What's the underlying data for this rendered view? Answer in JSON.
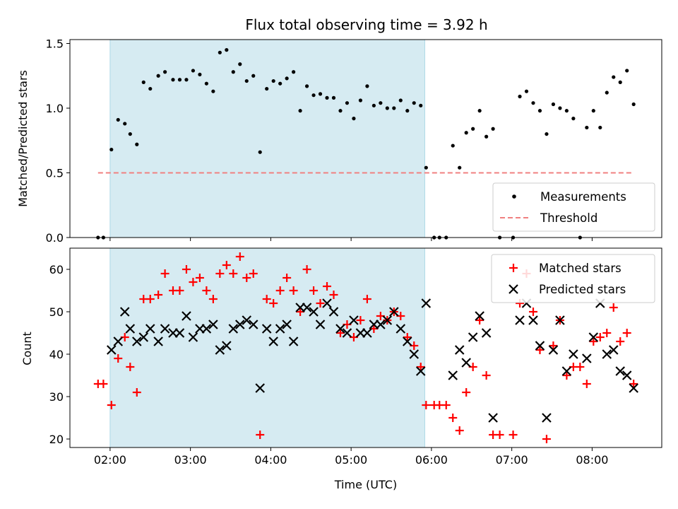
{
  "chart_data": {
    "title": "Flux total observing time = 3.92 h",
    "xlabel": "Time (UTC)",
    "x_ticks": [
      "02:00",
      "03:00",
      "04:00",
      "05:00",
      "06:00",
      "07:00",
      "08:00"
    ],
    "x_range": [
      "01:30",
      "08:52"
    ],
    "shaded_interval": [
      "02:00",
      "05:55"
    ],
    "shade_color": "#add8e6",
    "panels": [
      {
        "type": "scatter",
        "ylabel": "Matched/Predicted stars",
        "ylim": [
          0,
          1.53
        ],
        "y_ticks": [
          "0.0",
          "0.5",
          "1.0",
          "1.5"
        ],
        "legend_position": "lower-right",
        "series": [
          {
            "name": "Measurements",
            "marker": "dot",
            "color": "#000000",
            "points": [
              [
                "01:51",
                0.0
              ],
              [
                "01:55",
                0.0
              ],
              [
                "02:01",
                0.68
              ],
              [
                "02:06",
                0.91
              ],
              [
                "02:11",
                0.88
              ],
              [
                "02:15",
                0.8
              ],
              [
                "02:20",
                0.72
              ],
              [
                "02:25",
                1.2
              ],
              [
                "02:30",
                1.15
              ],
              [
                "02:36",
                1.25
              ],
              [
                "02:41",
                1.28
              ],
              [
                "02:47",
                1.22
              ],
              [
                "02:52",
                1.22
              ],
              [
                "02:57",
                1.22
              ],
              [
                "03:02",
                1.29
              ],
              [
                "03:07",
                1.26
              ],
              [
                "03:12",
                1.19
              ],
              [
                "03:17",
                1.13
              ],
              [
                "03:22",
                1.43
              ],
              [
                "03:27",
                1.45
              ],
              [
                "03:32",
                1.28
              ],
              [
                "03:37",
                1.34
              ],
              [
                "03:42",
                1.21
              ],
              [
                "03:47",
                1.25
              ],
              [
                "03:52",
                0.66
              ],
              [
                "03:57",
                1.15
              ],
              [
                "04:02",
                1.21
              ],
              [
                "04:07",
                1.19
              ],
              [
                "04:12",
                1.23
              ],
              [
                "04:17",
                1.28
              ],
              [
                "04:22",
                0.98
              ],
              [
                "04:27",
                1.17
              ],
              [
                "04:32",
                1.1
              ],
              [
                "04:37",
                1.11
              ],
              [
                "04:42",
                1.08
              ],
              [
                "04:47",
                1.08
              ],
              [
                "04:52",
                0.98
              ],
              [
                "04:57",
                1.04
              ],
              [
                "05:02",
                0.92
              ],
              [
                "05:07",
                1.06
              ],
              [
                "05:12",
                1.17
              ],
              [
                "05:17",
                1.02
              ],
              [
                "05:22",
                1.04
              ],
              [
                "05:27",
                1.0
              ],
              [
                "05:32",
                1.0
              ],
              [
                "05:37",
                1.06
              ],
              [
                "05:42",
                0.98
              ],
              [
                "05:47",
                1.04
              ],
              [
                "05:52",
                1.02
              ],
              [
                "05:56",
                0.54
              ],
              [
                "06:02",
                0.0
              ],
              [
                "06:06",
                0.0
              ],
              [
                "06:11",
                0.0
              ],
              [
                "06:16",
                0.71
              ],
              [
                "06:21",
                0.54
              ],
              [
                "06:26",
                0.81
              ],
              [
                "06:31",
                0.84
              ],
              [
                "06:36",
                0.98
              ],
              [
                "06:41",
                0.78
              ],
              [
                "06:46",
                0.84
              ],
              [
                "06:51",
                0.0
              ],
              [
                "07:01",
                0.0
              ],
              [
                "07:06",
                1.09
              ],
              [
                "07:11",
                1.13
              ],
              [
                "07:16",
                1.04
              ],
              [
                "07:21",
                0.98
              ],
              [
                "07:26",
                0.8
              ],
              [
                "07:31",
                1.03
              ],
              [
                "07:36",
                1.0
              ],
              [
                "07:41",
                0.98
              ],
              [
                "07:46",
                0.92
              ],
              [
                "07:51",
                0.0
              ],
              [
                "07:56",
                0.85
              ],
              [
                "08:01",
                0.98
              ],
              [
                "08:06",
                0.85
              ],
              [
                "08:11",
                1.12
              ],
              [
                "08:16",
                1.24
              ],
              [
                "08:21",
                1.2
              ],
              [
                "08:26",
                1.29
              ],
              [
                "08:31",
                1.03
              ]
            ]
          },
          {
            "name": "Threshold",
            "type": "line",
            "style": "dashed",
            "color": "#f08080",
            "value": 0.5,
            "x_start": "01:51",
            "x_end": "08:31"
          }
        ]
      },
      {
        "type": "scatter",
        "ylabel": "Count",
        "ylim": [
          18,
          65
        ],
        "y_ticks": [
          "20",
          "30",
          "40",
          "50",
          "60"
        ],
        "legend_position": "top-right",
        "series": [
          {
            "name": "Matched stars",
            "marker": "plus",
            "color": "#ff0000",
            "points": [
              [
                "01:51",
                33
              ],
              [
                "01:55",
                33
              ],
              [
                "02:01",
                28
              ],
              [
                "02:06",
                39
              ],
              [
                "02:11",
                44
              ],
              [
                "02:15",
                37
              ],
              [
                "02:20",
                31
              ],
              [
                "02:25",
                53
              ],
              [
                "02:30",
                53
              ],
              [
                "02:36",
                54
              ],
              [
                "02:41",
                59
              ],
              [
                "02:47",
                55
              ],
              [
                "02:52",
                55
              ],
              [
                "02:57",
                60
              ],
              [
                "03:02",
                57
              ],
              [
                "03:07",
                58
              ],
              [
                "03:12",
                55
              ],
              [
                "03:17",
                53
              ],
              [
                "03:22",
                59
              ],
              [
                "03:27",
                61
              ],
              [
                "03:32",
                59
              ],
              [
                "03:37",
                63
              ],
              [
                "03:42",
                58
              ],
              [
                "03:47",
                59
              ],
              [
                "03:52",
                21
              ],
              [
                "03:57",
                53
              ],
              [
                "04:02",
                52
              ],
              [
                "04:07",
                55
              ],
              [
                "04:12",
                58
              ],
              [
                "04:17",
                55
              ],
              [
                "04:22",
                50
              ],
              [
                "04:27",
                60
              ],
              [
                "04:32",
                55
              ],
              [
                "04:37",
                52
              ],
              [
                "04:42",
                56
              ],
              [
                "04:47",
                54
              ],
              [
                "04:52",
                45
              ],
              [
                "04:57",
                47
              ],
              [
                "05:02",
                44
              ],
              [
                "05:07",
                48
              ],
              [
                "05:12",
                53
              ],
              [
                "05:17",
                46
              ],
              [
                "05:22",
                49
              ],
              [
                "05:27",
                48
              ],
              [
                "05:32",
                50
              ],
              [
                "05:37",
                49
              ],
              [
                "05:42",
                44
              ],
              [
                "05:47",
                42
              ],
              [
                "05:52",
                37
              ],
              [
                "05:56",
                28
              ],
              [
                "06:02",
                28
              ],
              [
                "06:06",
                28
              ],
              [
                "06:11",
                28
              ],
              [
                "06:16",
                25
              ],
              [
                "06:21",
                22
              ],
              [
                "06:26",
                31
              ],
              [
                "06:31",
                37
              ],
              [
                "06:36",
                48
              ],
              [
                "06:41",
                35
              ],
              [
                "06:46",
                21
              ],
              [
                "06:51",
                21
              ],
              [
                "07:01",
                21
              ],
              [
                "07:06",
                52
              ],
              [
                "07:11",
                59
              ],
              [
                "07:16",
                50
              ],
              [
                "07:21",
                41
              ],
              [
                "07:26",
                20
              ],
              [
                "07:31",
                42
              ],
              [
                "07:36",
                48
              ],
              [
                "07:41",
                35
              ],
              [
                "07:46",
                37
              ],
              [
                "07:51",
                37
              ],
              [
                "07:56",
                33
              ],
              [
                "08:01",
                43
              ],
              [
                "08:06",
                44
              ],
              [
                "08:11",
                45
              ],
              [
                "08:16",
                51
              ],
              [
                "08:21",
                43
              ],
              [
                "08:26",
                45
              ],
              [
                "08:31",
                33
              ]
            ]
          },
          {
            "name": "Predicted stars",
            "marker": "x",
            "color": "#000000",
            "points": [
              [
                "02:01",
                41
              ],
              [
                "02:06",
                43
              ],
              [
                "02:11",
                50
              ],
              [
                "02:15",
                46
              ],
              [
                "02:20",
                43
              ],
              [
                "02:25",
                44
              ],
              [
                "02:30",
                46
              ],
              [
                "02:36",
                43
              ],
              [
                "02:41",
                46
              ],
              [
                "02:47",
                45
              ],
              [
                "02:52",
                45
              ],
              [
                "02:57",
                49
              ],
              [
                "03:02",
                44
              ],
              [
                "03:07",
                46
              ],
              [
                "03:12",
                46
              ],
              [
                "03:17",
                47
              ],
              [
                "03:22",
                41
              ],
              [
                "03:27",
                42
              ],
              [
                "03:32",
                46
              ],
              [
                "03:37",
                47
              ],
              [
                "03:42",
                48
              ],
              [
                "03:47",
                47
              ],
              [
                "03:52",
                32
              ],
              [
                "03:57",
                46
              ],
              [
                "04:02",
                43
              ],
              [
                "04:07",
                46
              ],
              [
                "04:12",
                47
              ],
              [
                "04:17",
                43
              ],
              [
                "04:22",
                51
              ],
              [
                "04:27",
                51
              ],
              [
                "04:32",
                50
              ],
              [
                "04:37",
                47
              ],
              [
                "04:42",
                52
              ],
              [
                "04:47",
                50
              ],
              [
                "04:52",
                46
              ],
              [
                "04:57",
                45
              ],
              [
                "05:02",
                48
              ],
              [
                "05:07",
                45
              ],
              [
                "05:12",
                45
              ],
              [
                "05:17",
                47
              ],
              [
                "05:22",
                47
              ],
              [
                "05:27",
                48
              ],
              [
                "05:32",
                50
              ],
              [
                "05:37",
                46
              ],
              [
                "05:42",
                43
              ],
              [
                "05:47",
                40
              ],
              [
                "05:52",
                36
              ],
              [
                "05:56",
                52
              ],
              [
                "06:16",
                35
              ],
              [
                "06:21",
                41
              ],
              [
                "06:26",
                38
              ],
              [
                "06:31",
                44
              ],
              [
                "06:36",
                49
              ],
              [
                "06:41",
                45
              ],
              [
                "06:46",
                25
              ],
              [
                "07:06",
                48
              ],
              [
                "07:11",
                52
              ],
              [
                "07:16",
                48
              ],
              [
                "07:21",
                42
              ],
              [
                "07:26",
                25
              ],
              [
                "07:31",
                41
              ],
              [
                "07:36",
                48
              ],
              [
                "07:41",
                36
              ],
              [
                "07:46",
                40
              ],
              [
                "07:56",
                39
              ],
              [
                "08:01",
                44
              ],
              [
                "08:06",
                52
              ],
              [
                "08:11",
                40
              ],
              [
                "08:16",
                41
              ],
              [
                "08:21",
                36
              ],
              [
                "08:26",
                35
              ],
              [
                "08:31",
                32
              ]
            ]
          }
        ]
      }
    ]
  }
}
